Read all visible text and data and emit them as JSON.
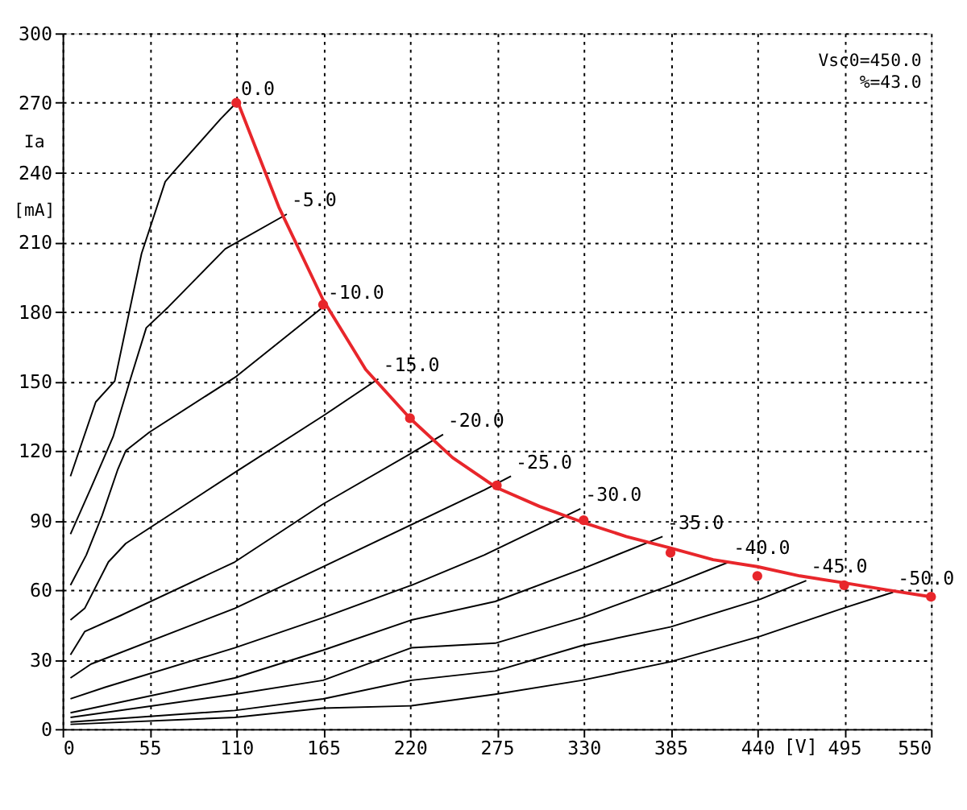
{
  "chart_data": {
    "type": "line",
    "xlabel": "[V]",
    "ylabel": "Ia [mA]",
    "xlim": [
      0,
      550
    ],
    "ylim": [
      0,
      300
    ],
    "xticks": [
      0,
      55,
      110,
      165,
      220,
      275,
      330,
      385,
      440,
      495,
      550
    ],
    "yticks": [
      0,
      30,
      60,
      90,
      120,
      150,
      180,
      210,
      240,
      270,
      300
    ],
    "grid": true,
    "marker": "none",
    "line_style": "solid",
    "annotations": [
      "Vsc0=450.0",
      "%=43.0"
    ],
    "series": [
      {
        "name": "0.0",
        "color": "#000000",
        "x": [
          5,
          21,
          33,
          50,
          65,
          70,
          100,
          110
        ],
        "values": [
          109,
          141,
          150,
          205,
          236,
          240,
          263,
          270
        ]
      },
      {
        "name": "-5.0",
        "color": "#000000",
        "x": [
          5,
          18,
          32,
          43,
          53,
          67,
          103,
          142
        ],
        "values": [
          84,
          104,
          126,
          151,
          173,
          182,
          207,
          222
        ]
      },
      {
        "name": "-10.0",
        "color": "#000000",
        "x": [
          5,
          15,
          25,
          35,
          40,
          55,
          110,
          165
        ],
        "values": [
          62,
          75,
          92,
          112,
          120,
          128,
          152,
          182
        ]
      },
      {
        "name": "-15.0",
        "color": "#000000",
        "x": [
          5,
          14,
          29,
          40,
          110,
          165,
          200
        ],
        "values": [
          47,
          52,
          72,
          80,
          111,
          135,
          151
        ]
      },
      {
        "name": "-20.0",
        "color": "#000000",
        "x": [
          5,
          14,
          37,
          109,
          165,
          221,
          241
        ],
        "values": [
          32,
          42,
          49,
          72,
          97,
          119,
          127
        ]
      },
      {
        "name": "-25.0",
        "color": "#000000",
        "x": [
          5,
          18,
          109,
          165,
          267,
          284
        ],
        "values": [
          22,
          28,
          52,
          70,
          103,
          109
        ]
      },
      {
        "name": "-30.0",
        "color": "#000000",
        "x": [
          5,
          27,
          109,
          165,
          221,
          267,
          328
        ],
        "values": [
          13,
          18,
          35,
          48,
          62,
          75,
          95
        ]
      },
      {
        "name": "-35.0",
        "color": "#000000",
        "x": [
          5,
          109,
          165,
          221,
          274,
          329,
          380
        ],
        "values": [
          7,
          22,
          34,
          47,
          55,
          69,
          83
        ]
      },
      {
        "name": "-40.0",
        "color": "#000000",
        "x": [
          5,
          109,
          165,
          221,
          274,
          329,
          385,
          422
        ],
        "values": [
          5,
          15,
          21,
          35,
          37,
          48,
          62,
          72
        ]
      },
      {
        "name": "-45.0",
        "color": "#000000",
        "x": [
          5,
          109,
          165,
          221,
          274,
          329,
          385,
          442,
          471
        ],
        "values": [
          3,
          8,
          13,
          21,
          25,
          36,
          44,
          56,
          64
        ]
      },
      {
        "name": "-50.0",
        "color": "#000000",
        "x": [
          5,
          109,
          165,
          221,
          274,
          329,
          385,
          442,
          494,
          526
        ],
        "values": [
          2,
          5,
          9,
          10,
          15,
          21,
          29,
          40,
          52,
          59
        ]
      },
      {
        "color": "#e8262b",
        "x": [
          110,
          137,
          165,
          192,
          220,
          247,
          275,
          302,
          330,
          357,
          385,
          412,
          440,
          467,
          495,
          522,
          550
        ],
        "values": [
          272,
          225,
          185,
          155,
          134,
          117,
          104,
          96,
          89,
          83,
          78,
          73,
          70,
          66,
          63,
          60,
          57
        ]
      },
      {
        "type": "scatter",
        "marker": "circle",
        "color": "#e8262b",
        "x": [
          110,
          165,
          220,
          275,
          330,
          385,
          440,
          495,
          550
        ],
        "values": [
          270,
          183,
          134,
          105,
          90,
          76,
          66,
          62,
          57
        ]
      }
    ]
  }
}
